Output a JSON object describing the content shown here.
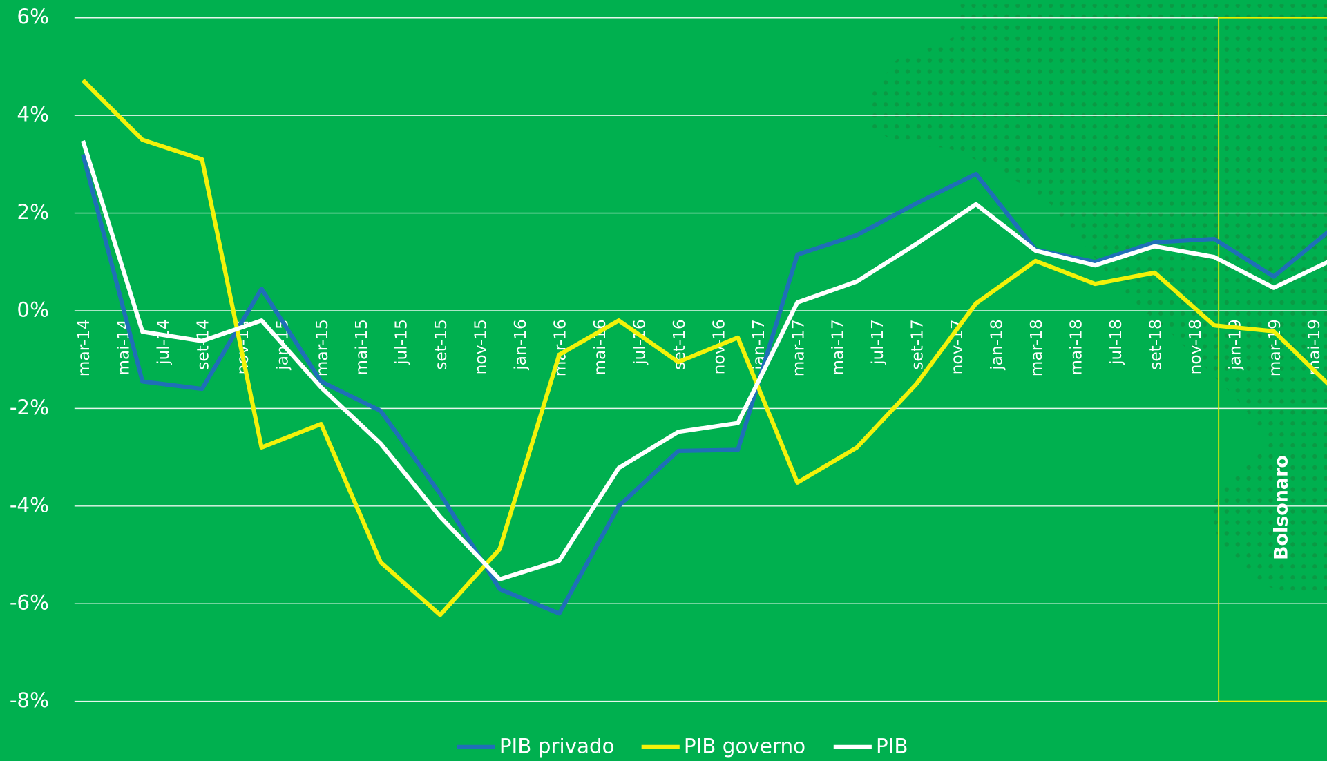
{
  "chart_data": {
    "type": "line",
    "categories": [
      "mar-14",
      null,
      "mai-14",
      null,
      "jul-14",
      null,
      "set-14",
      null,
      "nov-14",
      null,
      "jan-15",
      null,
      "mar-15",
      null,
      "mai-15",
      null,
      "jul-15",
      null,
      "set-15",
      null,
      "nov-15",
      null,
      "jan-16",
      null,
      "mar-16",
      null,
      "mai-16",
      null,
      "jul-16",
      null,
      "set-16",
      null,
      "nov-16",
      null,
      "jan-17",
      null,
      "mar-17",
      null,
      "mai-17",
      null,
      "jul-17",
      null,
      "set-17",
      null,
      "nov-17",
      null,
      "jan-18",
      null,
      "mar-18",
      null,
      "mai-18",
      null,
      "jul-18",
      null,
      "set-18",
      null,
      "nov-18",
      null,
      "jan-19",
      null,
      "mar-19",
      null,
      "mai-19",
      null
    ],
    "series": [
      {
        "name": "PIB privado",
        "color": "#1f6fb8",
        "values": [
          3.2,
          null,
          null,
          -1.45,
          null,
          null,
          -1.6,
          null,
          null,
          0.45,
          null,
          null,
          -1.45,
          null,
          null,
          -2.05,
          null,
          null,
          -3.75,
          null,
          null,
          -5.7,
          null,
          null,
          -6.2,
          null,
          null,
          -4.0,
          null,
          null,
          -2.87,
          null,
          null,
          -2.85,
          null,
          null,
          1.15,
          null,
          null,
          1.55,
          null,
          null,
          2.2,
          null,
          null,
          2.8,
          null,
          null,
          1.25,
          null,
          null,
          1.0,
          null,
          null,
          1.4,
          null,
          null,
          1.47,
          null,
          null,
          0.7,
          null,
          null,
          1.7
        ]
      },
      {
        "name": "PIB governo",
        "color": "#f2f20a",
        "values": [
          4.72,
          null,
          null,
          3.5,
          null,
          null,
          3.1,
          null,
          null,
          -2.8,
          null,
          null,
          -2.32,
          null,
          null,
          -5.15,
          null,
          null,
          -6.23,
          null,
          null,
          -4.88,
          null,
          null,
          -0.9,
          null,
          null,
          -0.2,
          null,
          null,
          -1.05,
          null,
          null,
          -0.55,
          null,
          null,
          -3.52,
          null,
          null,
          -2.8,
          null,
          null,
          -1.5,
          null,
          null,
          0.15,
          null,
          null,
          1.02,
          null,
          null,
          0.55,
          null,
          null,
          0.78,
          null,
          null,
          -0.3,
          null,
          null,
          -0.42,
          null,
          null,
          -1.6
        ]
      },
      {
        "name": "PIB",
        "color": "#ffffff",
        "values": [
          3.48,
          null,
          null,
          -0.43,
          null,
          null,
          -0.62,
          null,
          null,
          -0.2,
          null,
          null,
          -1.57,
          null,
          null,
          -2.72,
          null,
          null,
          -4.22,
          null,
          null,
          -5.5,
          null,
          null,
          -5.12,
          null,
          null,
          -3.22,
          null,
          null,
          -2.48,
          null,
          null,
          -2.3,
          null,
          null,
          0.17,
          null,
          null,
          0.6,
          null,
          null,
          1.37,
          null,
          null,
          2.18,
          null,
          null,
          1.23,
          null,
          null,
          0.93,
          null,
          null,
          1.32,
          null,
          null,
          1.1,
          null,
          null,
          0.47,
          null,
          null,
          1.05
        ]
      }
    ],
    "ylim": [
      -8,
      6
    ],
    "yticks": [
      {
        "value": -8,
        "label": "-8%"
      },
      {
        "value": -6,
        "label": "-6%"
      },
      {
        "value": -4,
        "label": "-4%"
      },
      {
        "value": -2,
        "label": "-2%"
      },
      {
        "value": 0,
        "label": "0%"
      },
      {
        "value": 2,
        "label": "2%"
      },
      {
        "value": 4,
        "label": "4%"
      },
      {
        "value": 6,
        "label": "6%"
      }
    ],
    "grid": true,
    "legend": "bottom",
    "annotations": [
      {
        "text": "Bolsonaro"
      }
    ]
  }
}
